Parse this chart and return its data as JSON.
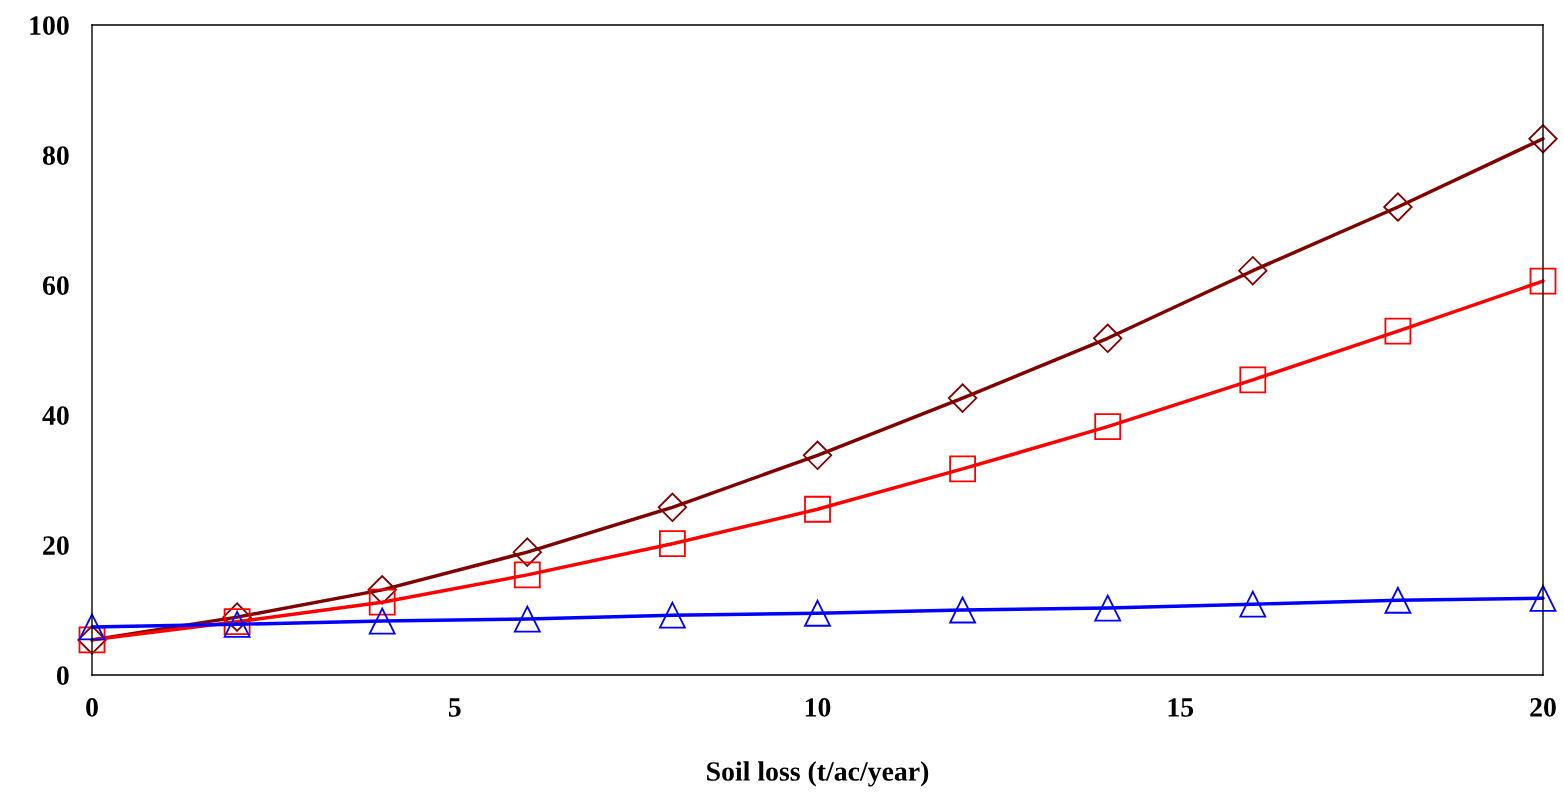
{
  "chart_data": {
    "type": "line",
    "xlabel": "Soil loss (t/ac/year)",
    "x": [
      0,
      2,
      4,
      6,
      8,
      10,
      12,
      14,
      16,
      18,
      20
    ],
    "xlim": [
      0,
      20
    ],
    "xticks": [
      0,
      5,
      10,
      15,
      20
    ],
    "ylim": [
      0,
      100
    ],
    "yticks": [
      0,
      20,
      40,
      60,
      80,
      100
    ],
    "grid": false,
    "line_style": "solid",
    "series": [
      {
        "color": "#800000",
        "marker": "diamond",
        "values": [
          5.4,
          8.9,
          13.1,
          18.9,
          25.8,
          33.8,
          42.6,
          51.8,
          62.2,
          72,
          82.5
        ]
      },
      {
        "color": "#ff0000",
        "marker": "square",
        "values": [
          5.4,
          8.2,
          11.2,
          15.4,
          20.2,
          25.5,
          31.7,
          38.2,
          45.4,
          52.9,
          60.6
        ]
      },
      {
        "color": "#0000ff",
        "marker": "triangle",
        "values": [
          7.4,
          7.8,
          8.3,
          8.6,
          9.2,
          9.5,
          10,
          10.3,
          10.9,
          11.5,
          11.8
        ]
      }
    ]
  }
}
